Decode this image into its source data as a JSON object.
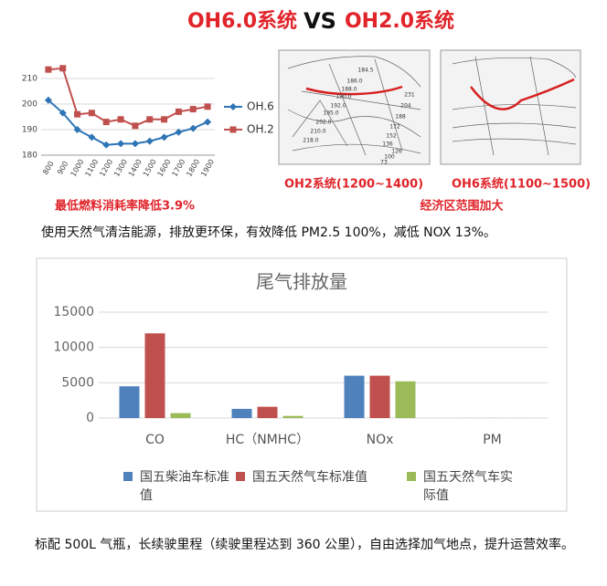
{
  "header": {
    "left": "OH6.0系统",
    "vs": "VS",
    "right": "OH2.0系统"
  },
  "chart_data": [
    {
      "type": "line",
      "categories": [
        "800",
        "900",
        "1000",
        "1100",
        "1200",
        "1300",
        "1400",
        "1500",
        "1600",
        "1700",
        "1800",
        "1900"
      ],
      "series": [
        {
          "name": "OH.6",
          "color": "#2e75b6",
          "marker": "diamond",
          "values": [
            201.5,
            196.5,
            190,
            187,
            184,
            184.5,
            184.5,
            185.5,
            187,
            189,
            190.5,
            193
          ]
        },
        {
          "name": "OH.2",
          "color": "#c0504d",
          "marker": "square",
          "values": [
            213.5,
            214,
            196,
            196.5,
            193,
            194,
            191.5,
            194,
            194,
            197,
            198,
            199
          ]
        }
      ],
      "ylim": [
        180,
        220
      ],
      "yticks": [
        180,
        190,
        200,
        210
      ],
      "grid": true,
      "caption": "最低燃料消耗率降低3.9%"
    },
    {
      "type": "bar",
      "title": "尾气排放量",
      "categories": [
        "CO",
        "HC（NMHC）",
        "NOx",
        "PM"
      ],
      "series": [
        {
          "name": "国五柴油车标准值",
          "color": "#4f81bd",
          "values": [
            4500,
            1300,
            6000,
            10
          ]
        },
        {
          "name": "国五天然气车标准值",
          "color": "#c0504d",
          "values": [
            12000,
            1600,
            6000,
            10
          ]
        },
        {
          "name": "国五天然气车实际值",
          "color": "#9bbb59",
          "values": [
            700,
            300,
            5200,
            10
          ]
        }
      ],
      "ylim": [
        0,
        15000
      ],
      "yticks": [
        0,
        5000,
        10000,
        15000
      ],
      "grid": true
    }
  ],
  "maps": [
    {
      "caption": "OH2系统(1200~1400)",
      "labels": [
        "184.5",
        "186.0",
        "188.0",
        "190.0",
        "192.0",
        "195.0",
        "202.0",
        "210.0",
        "218.0",
        "231",
        "204",
        "188",
        "172",
        "152",
        "136",
        "126",
        "100",
        "73"
      ]
    },
    {
      "caption": "OH6系统(1100~1500)",
      "labels": []
    }
  ],
  "maps_note": "经济区范围加大",
  "paragraphs": [
    "使用天然气清洁能源，排放更环保，有效降低 PM2.5 100%，减低 NOX 13%。",
    "标配 500L 气瓶，长续驶里程（续驶里程达到 360 公里），自由选择加气地点，提升运营效率。"
  ]
}
